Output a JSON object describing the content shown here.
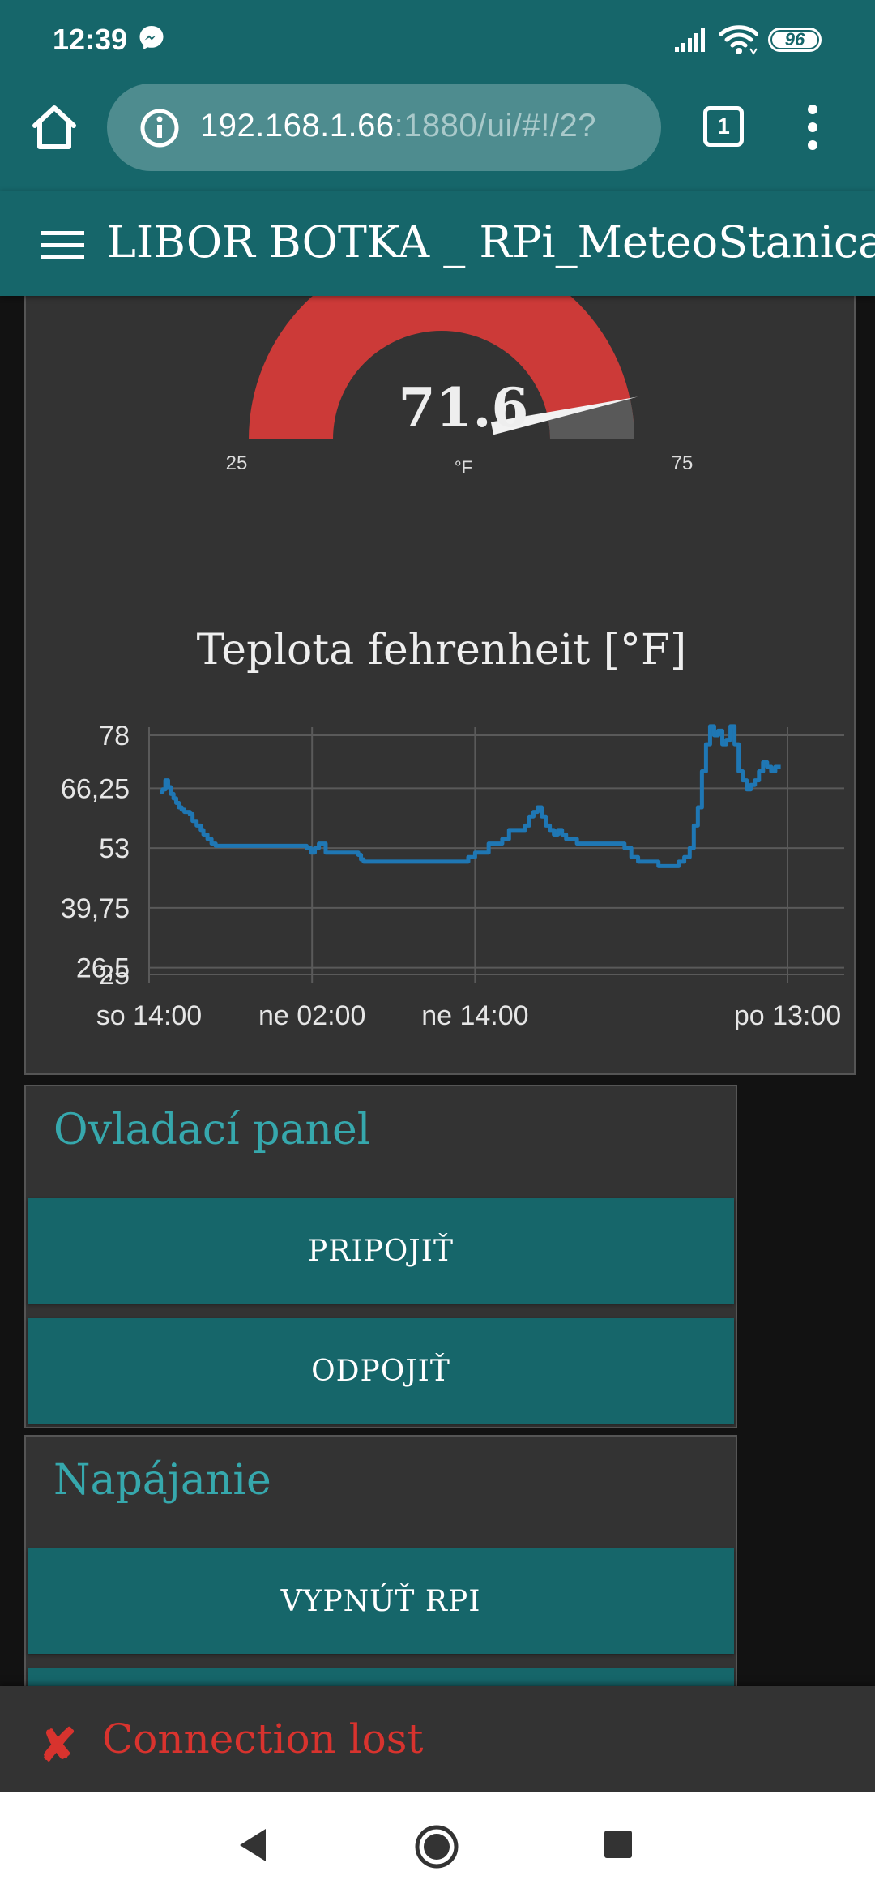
{
  "status_bar": {
    "time": "12:39",
    "battery": "96",
    "icons": [
      "messenger-icon",
      "signal-icon",
      "wifi-icon",
      "battery-icon"
    ]
  },
  "browser": {
    "url_host": "192.168.1.66",
    "url_path": ":1880/ui/#!/2?",
    "tab_count": "1",
    "icons": [
      "home-icon",
      "info-icon",
      "more-vert-icon"
    ]
  },
  "app": {
    "title": "LIBOR BOTKA _ RPi_MeteoStanica"
  },
  "gauge": {
    "value": "71.6",
    "unit": "°F",
    "min": "25",
    "max": "75",
    "value_num": 71.6,
    "min_num": 25,
    "max_num": 75,
    "segment_color": "#cc3a38",
    "empty_color": "#595959"
  },
  "chart_data": {
    "type": "line",
    "title": "Teplota fehrenheit [°F]",
    "x_ticks": [
      "so 14:00",
      "ne 02:00",
      "ne 14:00",
      "po 13:00"
    ],
    "x_tick_hours": [
      0,
      12,
      24,
      47
    ],
    "y_ticks": [
      "78",
      "66,25",
      "53",
      "39,75",
      "26,5",
      "25"
    ],
    "y_tick_values": [
      78,
      66.25,
      53,
      39.75,
      26.5,
      25
    ],
    "ylim": [
      25,
      78
    ],
    "xlim_hours": [
      0,
      47
    ],
    "grid": true,
    "color": "#1f77b4",
    "series": [
      {
        "x": [
          0.8,
          1.0,
          1.2,
          1.4,
          1.6,
          1.8,
          2.0,
          2.2,
          2.4,
          2.6,
          2.8,
          3.0,
          3.2,
          3.5,
          3.8,
          4.0,
          4.3,
          4.6,
          4.9,
          5.2,
          5.5,
          5.8,
          6.0,
          6.5,
          7,
          8,
          9,
          10,
          11,
          11.6,
          11.9,
          12.2,
          12.5,
          13,
          14,
          15,
          15.4,
          15.6,
          15.8,
          16.0,
          16.3,
          16.6,
          17,
          18,
          19,
          20,
          21,
          22,
          23,
          23.5,
          24,
          25,
          26,
          26.5,
          26.8,
          27.1,
          27.4,
          27.7,
          28.0,
          28.3,
          28.6,
          28.9,
          29.2,
          29.5,
          29.8,
          30.1,
          30.4,
          30.7,
          31.0,
          31.5,
          32,
          33,
          34,
          35,
          35.5,
          36,
          36.5,
          37,
          37.5,
          38,
          38.5,
          39,
          39.4,
          39.8,
          40.1,
          40.4,
          40.7,
          41.0,
          41.3,
          41.6,
          41.9,
          42.2,
          42.5,
          42.8,
          43.1,
          43.4,
          43.7,
          44.0,
          44.3,
          44.6,
          44.9,
          45.2,
          45.5,
          45.8,
          46.1,
          46.5
        ],
        "y": [
          65.5,
          66,
          68,
          66.5,
          65,
          64,
          63,
          62,
          61.5,
          61,
          61,
          60.5,
          59,
          58,
          57,
          56,
          55,
          54,
          53.5,
          53.5,
          53.5,
          53.5,
          53.5,
          53.5,
          53.5,
          53.5,
          53.5,
          53.5,
          53.5,
          53,
          52,
          53,
          54,
          52,
          52,
          52,
          51.5,
          50.5,
          50,
          50,
          50,
          50,
          50,
          50,
          50,
          50,
          50,
          50,
          50,
          51,
          52,
          54,
          55,
          57,
          57,
          57,
          57,
          58,
          60,
          61,
          62,
          60,
          58,
          57,
          56,
          57,
          56,
          55,
          55,
          54,
          54,
          54,
          54,
          53,
          51,
          50,
          50,
          50,
          49,
          49,
          49,
          50,
          51,
          53,
          58,
          62,
          70,
          76,
          80,
          78,
          79,
          76,
          77,
          80,
          76,
          70,
          68,
          66,
          67,
          68,
          70,
          72,
          71,
          70,
          71,
          71
        ]
      }
    ]
  },
  "panels": [
    {
      "title": "Ovladací panel",
      "buttons": [
        "PRIPOJIŤ",
        "ODPOJIŤ"
      ]
    },
    {
      "title": "Napájanie",
      "buttons": [
        "VYPNÚŤ RPI"
      ]
    }
  ],
  "toast": {
    "icon": "✘",
    "message": "Connection lost"
  },
  "navbar": {
    "icons": [
      "back-icon",
      "home-circle-icon",
      "recents-icon"
    ]
  }
}
